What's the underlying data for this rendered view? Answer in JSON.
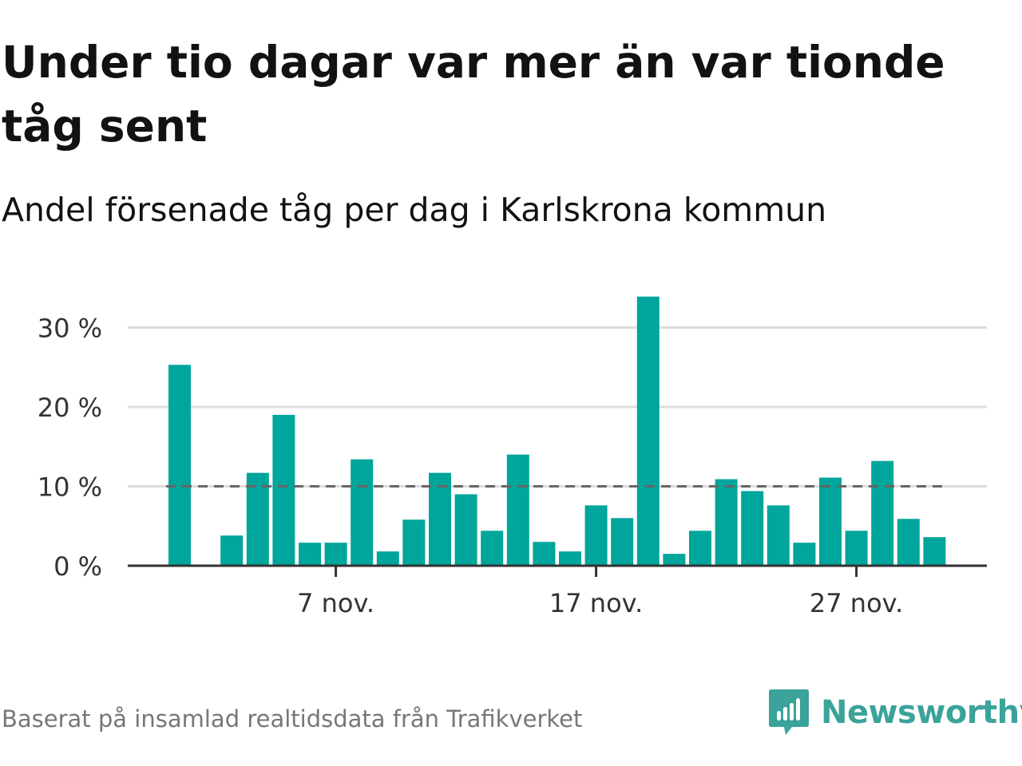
{
  "title": "Under tio dagar var mer än var tionde tåg sent",
  "subtitle": "Andel försenade tåg per dag i Karlskrona kommun",
  "source": "Baserat på insamlad realtidsdata från Trafikverket",
  "logo": {
    "name": "Newsworthy",
    "icon": "newsworthy-logo-icon"
  },
  "colors": {
    "bar": "#00a59b",
    "reference_line": "#666666",
    "grid": "#dddddd",
    "axis": "#333333",
    "logo": "#3aa39a"
  },
  "chart_data": {
    "type": "bar",
    "x": [
      "1 nov.",
      "2 nov.",
      "3 nov.",
      "4 nov.",
      "5 nov.",
      "6 nov.",
      "7 nov.",
      "8 nov.",
      "9 nov.",
      "10 nov.",
      "11 nov.",
      "12 nov.",
      "13 nov.",
      "14 nov.",
      "15 nov.",
      "16 nov.",
      "17 nov.",
      "18 nov.",
      "19 nov.",
      "20 nov.",
      "21 nov.",
      "22 nov.",
      "23 nov.",
      "24 nov.",
      "25 nov.",
      "26 nov.",
      "27 nov.",
      "28 nov.",
      "29 nov.",
      "30 nov."
    ],
    "values": [
      25.3,
      null,
      3.8,
      11.7,
      19.0,
      2.9,
      2.9,
      13.4,
      1.8,
      5.8,
      11.7,
      9.0,
      4.4,
      14.0,
      3.0,
      1.8,
      7.6,
      6.0,
      33.9,
      1.5,
      4.4,
      10.9,
      9.4,
      7.6,
      2.9,
      11.1,
      4.4,
      13.2,
      5.9,
      3.6
    ],
    "reference_line": 10,
    "ylim": [
      0,
      35
    ],
    "y_ticks": [
      {
        "value": 0,
        "label": "0 %"
      },
      {
        "value": 10,
        "label": "10 %"
      },
      {
        "value": 20,
        "label": "20 %"
      },
      {
        "value": 30,
        "label": "30 %"
      }
    ],
    "x_ticks": [
      {
        "day": 7,
        "label": "7 nov."
      },
      {
        "day": 17,
        "label": "17 nov."
      },
      {
        "day": 27,
        "label": "27 nov."
      }
    ],
    "grid": true,
    "legend": "none"
  }
}
